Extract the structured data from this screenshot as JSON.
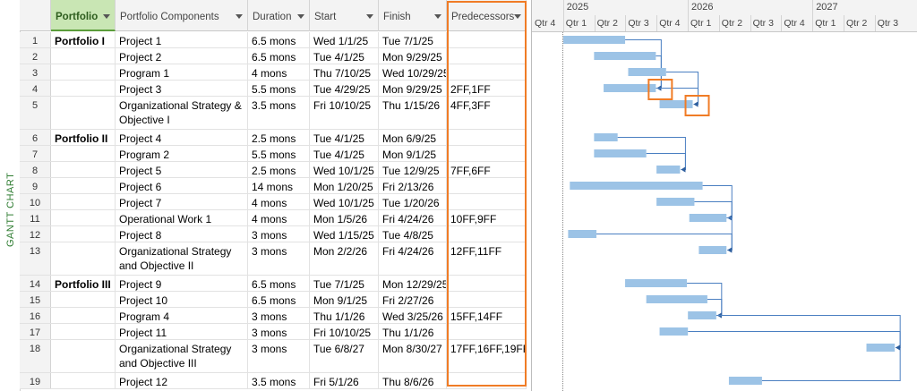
{
  "sidebar_label": "GANTT CHART",
  "columns": {
    "num": "",
    "portfolio": "Portfolio",
    "components": "Portfolio Components",
    "duration": "Duration",
    "start": "Start",
    "finish": "Finish",
    "predecessors": "Predecessors"
  },
  "rows": [
    {
      "id": "1",
      "portfolio": "Portfolio I",
      "component": "Project 1",
      "duration": "6.5 mons",
      "start": "Wed 1/1/25",
      "finish": "Tue 7/1/25",
      "pred": ""
    },
    {
      "id": "2",
      "portfolio": "",
      "component": "Project 2",
      "duration": "6.5 mons",
      "start": "Tue 4/1/25",
      "finish": "Mon 9/29/25",
      "pred": ""
    },
    {
      "id": "3",
      "portfolio": "",
      "component": "Program 1",
      "duration": "4 mons",
      "start": "Thu 7/10/25",
      "finish": "Wed 10/29/25",
      "pred": ""
    },
    {
      "id": "4",
      "portfolio": "",
      "component": "Project 3",
      "duration": "5.5 mons",
      "start": "Tue 4/29/25",
      "finish": "Mon 9/29/25",
      "pred": "2FF,1FF"
    },
    {
      "id": "5",
      "portfolio": "",
      "component": "Organizational Strategy & Objective I",
      "duration": "3.5 mons",
      "start": "Fri 10/10/25",
      "finish": "Thu 1/15/26",
      "pred": "4FF,3FF"
    },
    {
      "id": "6",
      "portfolio": "Portfolio II",
      "component": "Project 4",
      "duration": "2.5 mons",
      "start": "Tue 4/1/25",
      "finish": "Mon 6/9/25",
      "pred": ""
    },
    {
      "id": "7",
      "portfolio": "",
      "component": "Program 2",
      "duration": "5.5 mons",
      "start": "Tue 4/1/25",
      "finish": "Mon 9/1/25",
      "pred": ""
    },
    {
      "id": "8",
      "portfolio": "",
      "component": "Project 5",
      "duration": "2.5 mons",
      "start": "Wed 10/1/25",
      "finish": "Tue 12/9/25",
      "pred": "7FF,6FF"
    },
    {
      "id": "9",
      "portfolio": "",
      "component": "Project 6",
      "duration": "14 mons",
      "start": "Mon 1/20/25",
      "finish": "Fri 2/13/26",
      "pred": ""
    },
    {
      "id": "10",
      "portfolio": "",
      "component": "Project 7",
      "duration": "4 mons",
      "start": "Wed 10/1/25",
      "finish": "Tue 1/20/26",
      "pred": ""
    },
    {
      "id": "11",
      "portfolio": "",
      "component": "Operational Work 1",
      "duration": "4 mons",
      "start": "Mon 1/5/26",
      "finish": "Fri 4/24/26",
      "pred": "10FF,9FF"
    },
    {
      "id": "12",
      "portfolio": "",
      "component": "Project 8",
      "duration": "3 mons",
      "start": "Wed 1/15/25",
      "finish": "Tue 4/8/25",
      "pred": ""
    },
    {
      "id": "13",
      "portfolio": "",
      "component": "Organizational Strategy and Objective II",
      "duration": "3 mons",
      "start": "Mon 2/2/26",
      "finish": "Fri 4/24/26",
      "pred": "12FF,11FF"
    },
    {
      "id": "14",
      "portfolio": "Portfolio III",
      "component": "Project 9",
      "duration": "6.5 mons",
      "start": "Tue 7/1/25",
      "finish": "Mon 12/29/25",
      "pred": ""
    },
    {
      "id": "15",
      "portfolio": "",
      "component": "Project 10",
      "duration": "6.5 mons",
      "start": "Mon 9/1/25",
      "finish": "Fri 2/27/26",
      "pred": ""
    },
    {
      "id": "16",
      "portfolio": "",
      "component": "Program 4",
      "duration": "3 mons",
      "start": "Thu 1/1/26",
      "finish": "Wed 3/25/26",
      "pred": "15FF,14FF"
    },
    {
      "id": "17",
      "portfolio": "",
      "component": "Project 11",
      "duration": "3 mons",
      "start": "Fri 10/10/25",
      "finish": "Thu 1/1/26",
      "pred": ""
    },
    {
      "id": "18",
      "portfolio": "",
      "component": "Organizational Strategy and Objective III",
      "duration": "3 mons",
      "start": "Tue 6/8/27",
      "finish": "Mon 8/30/27",
      "pred": "17FF,16FF,19FF"
    },
    {
      "id": "19",
      "portfolio": "",
      "component": "Project 12",
      "duration": "3.5 mons",
      "start": "Fri 5/1/26",
      "finish": "Thu 8/6/26",
      "pred": ""
    }
  ],
  "timescale": {
    "years": [
      "2025",
      "2026",
      "2027"
    ],
    "quarters": [
      "Qtr 4",
      "Qtr 1",
      "Qtr 2",
      "Qtr 3",
      "Qtr 4",
      "Qtr 1",
      "Qtr 2",
      "Qtr 3",
      "Qtr 4",
      "Qtr 1",
      "Qtr 2",
      "Qtr 3"
    ]
  },
  "colors": {
    "bar": "#9cc3e6",
    "link": "#4a7fc1",
    "highlight": "#f07c26",
    "portfolio_header": "#c9e6b4"
  }
}
